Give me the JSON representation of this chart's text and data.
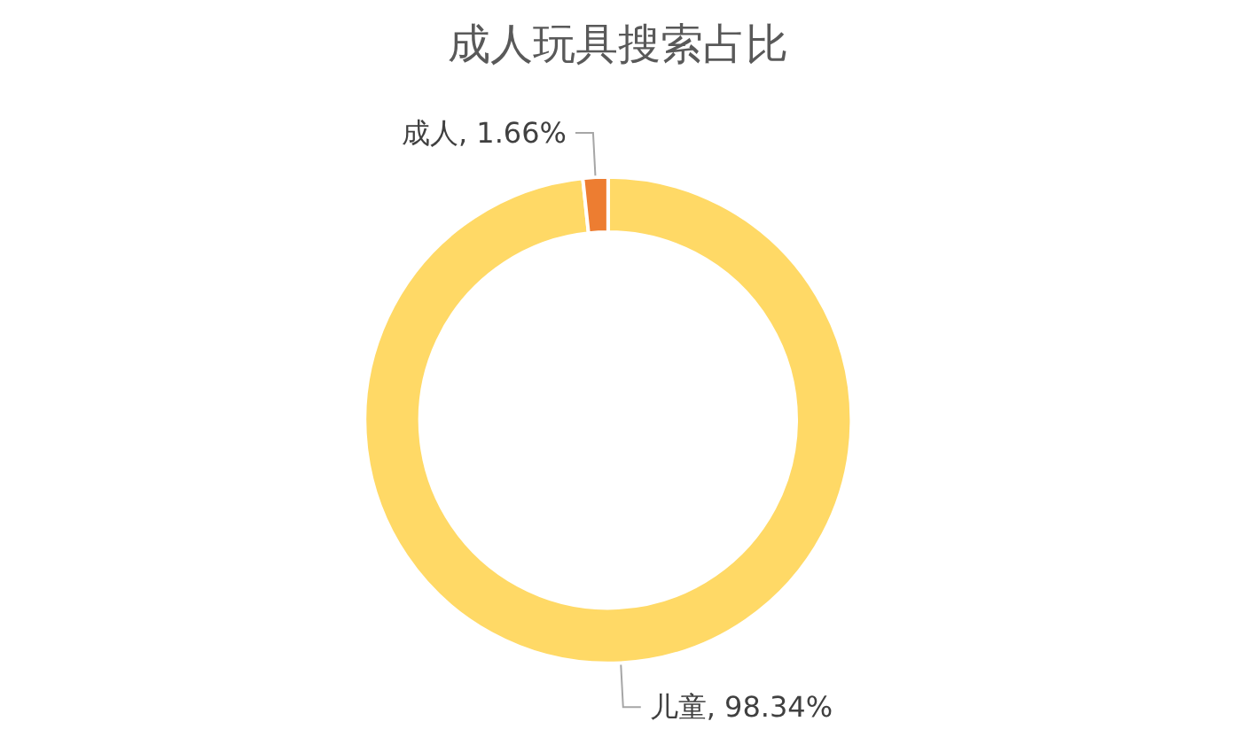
{
  "chart_data": {
    "type": "donut",
    "title": "成人玩具搜索占比",
    "categories": [
      "儿童",
      "成人"
    ],
    "values": [
      98.34,
      1.66
    ],
    "colors": [
      "#ffd966",
      "#ed7d31"
    ],
    "value_labels": [
      "98.34%",
      "1.66%"
    ],
    "legend": false
  }
}
